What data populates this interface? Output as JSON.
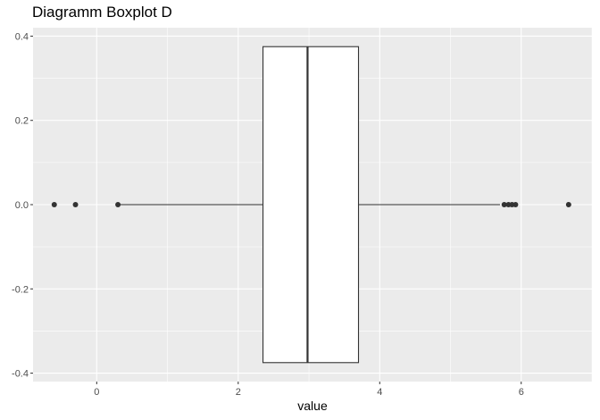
{
  "chart_data": {
    "type": "boxplot",
    "title": "Diagramm Boxplot D",
    "xlabel": "value",
    "ylabel": "",
    "xlim": [
      -0.9,
      7.0
    ],
    "ylim": [
      -0.42,
      0.42
    ],
    "x_ticks": [
      0,
      2,
      4,
      6
    ],
    "x_tick_labels": [
      "0",
      "2",
      "4",
      "6"
    ],
    "y_ticks": [
      -0.4,
      -0.2,
      0.0,
      0.2,
      0.4
    ],
    "y_tick_labels": [
      "-0.4",
      "-0.2",
      "0.0",
      "0.2",
      "0.4"
    ],
    "grid": true,
    "box": {
      "whisker_low": 0.3,
      "q1": 2.35,
      "median": 2.98,
      "q3": 3.7,
      "whisker_high": 5.7,
      "y_center": 0.0,
      "half_width": 0.375
    },
    "outliers": [
      -0.6,
      -0.3,
      0.3,
      5.76,
      5.82,
      5.87,
      5.92,
      6.67
    ],
    "colors": {
      "panel_background": "#ebebeb",
      "grid_major": "#ffffff",
      "box_fill": "#ffffff",
      "box_stroke": "#333333",
      "point": "#333333"
    }
  }
}
